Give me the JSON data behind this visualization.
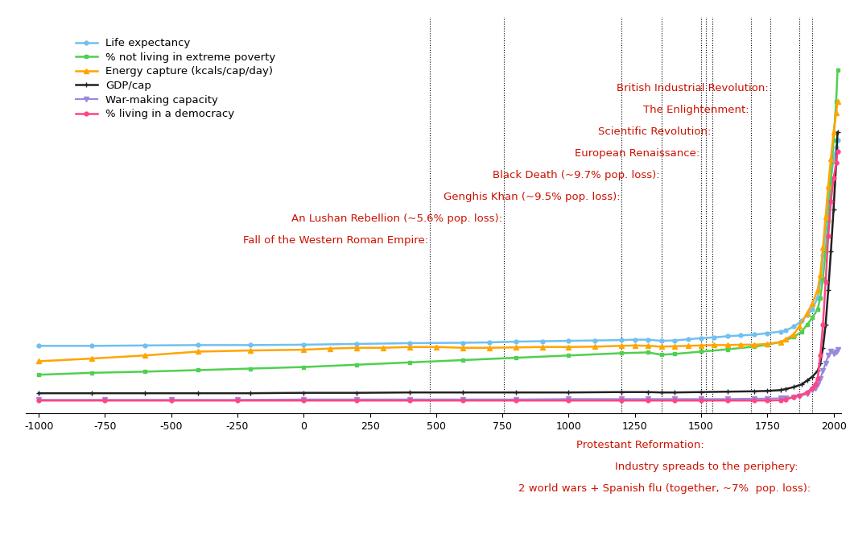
{
  "xlim": [
    -1050,
    2030
  ],
  "ylim": [
    -0.03,
    1.0
  ],
  "background_color": "#ffffff",
  "series": {
    "life_expectancy": {
      "label": "Life expectancy",
      "color": "#70c0f0",
      "marker": "o",
      "markersize": 3.5,
      "linewidth": 1.8,
      "x": [
        -1000,
        -800,
        -600,
        -400,
        -200,
        0,
        200,
        400,
        600,
        700,
        800,
        900,
        1000,
        1100,
        1200,
        1250,
        1300,
        1350,
        1400,
        1450,
        1500,
        1550,
        1600,
        1650,
        1700,
        1750,
        1800,
        1820,
        1850,
        1880,
        1900,
        1920,
        1940,
        1950,
        1960,
        1970,
        1980,
        1990,
        2000,
        2010,
        2015
      ],
      "y": [
        0.145,
        0.145,
        0.146,
        0.147,
        0.147,
        0.148,
        0.15,
        0.152,
        0.153,
        0.154,
        0.156,
        0.157,
        0.158,
        0.159,
        0.16,
        0.161,
        0.161,
        0.158,
        0.159,
        0.162,
        0.165,
        0.167,
        0.17,
        0.172,
        0.174,
        0.178,
        0.182,
        0.185,
        0.195,
        0.21,
        0.225,
        0.24,
        0.27,
        0.31,
        0.38,
        0.45,
        0.52,
        0.58,
        0.63,
        0.66,
        0.68
      ]
    },
    "gdp_cap": {
      "label": "GDP/cap",
      "color": "#222222",
      "marker": "+",
      "markersize": 4,
      "linewidth": 1.8,
      "x": [
        -1000,
        -800,
        -600,
        -400,
        -200,
        0,
        200,
        400,
        600,
        800,
        1000,
        1200,
        1300,
        1350,
        1400,
        1500,
        1600,
        1700,
        1750,
        1800,
        1820,
        1850,
        1880,
        1900,
        1920,
        1940,
        1950,
        1960,
        1970,
        1980,
        1990,
        2000,
        2010,
        2015
      ],
      "y": [
        0.022,
        0.022,
        0.022,
        0.022,
        0.022,
        0.023,
        0.023,
        0.024,
        0.024,
        0.024,
        0.024,
        0.025,
        0.025,
        0.024,
        0.024,
        0.025,
        0.026,
        0.027,
        0.028,
        0.03,
        0.033,
        0.038,
        0.045,
        0.055,
        0.065,
        0.08,
        0.1,
        0.14,
        0.2,
        0.29,
        0.39,
        0.5,
        0.62,
        0.7
      ]
    },
    "not_poverty": {
      "label": "% not living in extreme poverty",
      "color": "#50d050",
      "marker": "s",
      "markersize": 3.5,
      "linewidth": 1.8,
      "x": [
        -1000,
        -800,
        -600,
        -400,
        -200,
        0,
        200,
        400,
        600,
        800,
        1000,
        1200,
        1300,
        1350,
        1400,
        1500,
        1600,
        1700,
        1750,
        1800,
        1850,
        1880,
        1900,
        1920,
        1940,
        1950,
        1960,
        1970,
        1980,
        1990,
        2000,
        2010,
        2015
      ],
      "y": [
        0.07,
        0.075,
        0.078,
        0.082,
        0.086,
        0.09,
        0.096,
        0.102,
        0.108,
        0.114,
        0.12,
        0.126,
        0.128,
        0.122,
        0.124,
        0.13,
        0.136,
        0.143,
        0.148,
        0.155,
        0.168,
        0.182,
        0.2,
        0.218,
        0.24,
        0.27,
        0.32,
        0.39,
        0.47,
        0.57,
        0.68,
        0.78,
        0.86
      ]
    },
    "energy": {
      "label": "Energy capture (kcals/cap/day)",
      "color": "#ffa500",
      "marker": "^",
      "markersize": 4.5,
      "linewidth": 1.8,
      "x": [
        -1000,
        -800,
        -600,
        -400,
        -200,
        0,
        100,
        200,
        300,
        400,
        500,
        600,
        700,
        800,
        900,
        1000,
        1100,
        1200,
        1250,
        1300,
        1350,
        1400,
        1450,
        1500,
        1550,
        1600,
        1650,
        1700,
        1750,
        1800,
        1820,
        1850,
        1870,
        1900,
        1920,
        1940,
        1950,
        1960,
        1970,
        1980,
        1990,
        2000,
        2010,
        2015
      ],
      "y": [
        0.105,
        0.112,
        0.12,
        0.13,
        0.133,
        0.135,
        0.138,
        0.14,
        0.14,
        0.142,
        0.142,
        0.14,
        0.14,
        0.141,
        0.142,
        0.142,
        0.143,
        0.145,
        0.146,
        0.145,
        0.143,
        0.144,
        0.145,
        0.146,
        0.147,
        0.147,
        0.148,
        0.148,
        0.15,
        0.155,
        0.162,
        0.175,
        0.195,
        0.23,
        0.255,
        0.29,
        0.33,
        0.4,
        0.48,
        0.56,
        0.63,
        0.7,
        0.75,
        0.78
      ]
    },
    "war_making": {
      "label": "War-making capacity",
      "color": "#9988dd",
      "marker": "v",
      "markersize": 4,
      "linewidth": 1.5,
      "x": [
        -1000,
        -750,
        -500,
        -250,
        0,
        200,
        400,
        600,
        800,
        1000,
        1200,
        1300,
        1400,
        1500,
        1600,
        1700,
        1750,
        1800,
        1820,
        1850,
        1870,
        1900,
        1918,
        1930,
        1940,
        1950,
        1960,
        1970,
        1980,
        1990,
        2000,
        2010,
        2015
      ],
      "y": [
        0.005,
        0.005,
        0.005,
        0.005,
        0.006,
        0.006,
        0.006,
        0.006,
        0.006,
        0.007,
        0.007,
        0.007,
        0.007,
        0.007,
        0.007,
        0.008,
        0.008,
        0.009,
        0.01,
        0.012,
        0.014,
        0.02,
        0.03,
        0.035,
        0.045,
        0.06,
        0.08,
        0.1,
        0.12,
        0.13,
        0.125,
        0.128,
        0.135
      ]
    },
    "democracy": {
      "label": "% living in a democracy",
      "color": "#ff4488",
      "marker": "o",
      "markersize": 3.5,
      "linewidth": 1.8,
      "x": [
        -1000,
        -750,
        -500,
        -250,
        0,
        200,
        400,
        600,
        800,
        1000,
        1200,
        1300,
        1400,
        1500,
        1600,
        1700,
        1750,
        1800,
        1820,
        1850,
        1870,
        1900,
        1918,
        1930,
        1940,
        1950,
        1960,
        1970,
        1980,
        1990,
        2000,
        2010,
        2015
      ],
      "y": [
        0.003,
        0.003,
        0.003,
        0.003,
        0.003,
        0.003,
        0.003,
        0.003,
        0.003,
        0.003,
        0.003,
        0.003,
        0.003,
        0.003,
        0.003,
        0.003,
        0.003,
        0.004,
        0.006,
        0.012,
        0.016,
        0.024,
        0.035,
        0.045,
        0.06,
        0.12,
        0.2,
        0.31,
        0.43,
        0.52,
        0.58,
        0.62,
        0.65
      ]
    }
  },
  "vlines": [
    476,
    755,
    1200,
    1350,
    1500,
    1517,
    1543,
    1687,
    1760,
    1870,
    1918
  ],
  "above_annotations": [
    {
      "text": "British Industrial Revolution",
      "x": 1760,
      "row": 0
    },
    {
      "text": "The Enlightenment",
      "x": 1687,
      "row": 1
    },
    {
      "text": "Scientific Revolution",
      "x": 1543,
      "row": 2
    },
    {
      "text": "European Renaissance",
      "x": 1500,
      "row": 3
    },
    {
      "text": "Black Death (~9.7% pop. loss)",
      "x": 1350,
      "row": 4
    },
    {
      "text": "Genghis Khan (~9.5% pop. loss)",
      "x": 1200,
      "row": 5
    },
    {
      "text": "An Lushan Rebellion (~5.6% pop. loss)",
      "x": 755,
      "row": 6
    },
    {
      "text": "Fall of the Western Roman Empire",
      "x": 476,
      "row": 7
    }
  ],
  "below_annotations": [
    {
      "text": "Protestant Reformation",
      "x": 1517,
      "row": 0
    },
    {
      "text": "Industry spreads to the periphery",
      "x": 1870,
      "row": 1
    },
    {
      "text": "2 world wars + Spanish flu (together, ~7%  pop. loss)",
      "x": 1918,
      "row": 2
    }
  ],
  "annotation_color": "#cc1100",
  "annotation_fontsize": 9.5,
  "xticks": [
    -1000,
    -750,
    -500,
    -250,
    0,
    250,
    500,
    750,
    1000,
    1250,
    1500,
    1750,
    2000
  ]
}
